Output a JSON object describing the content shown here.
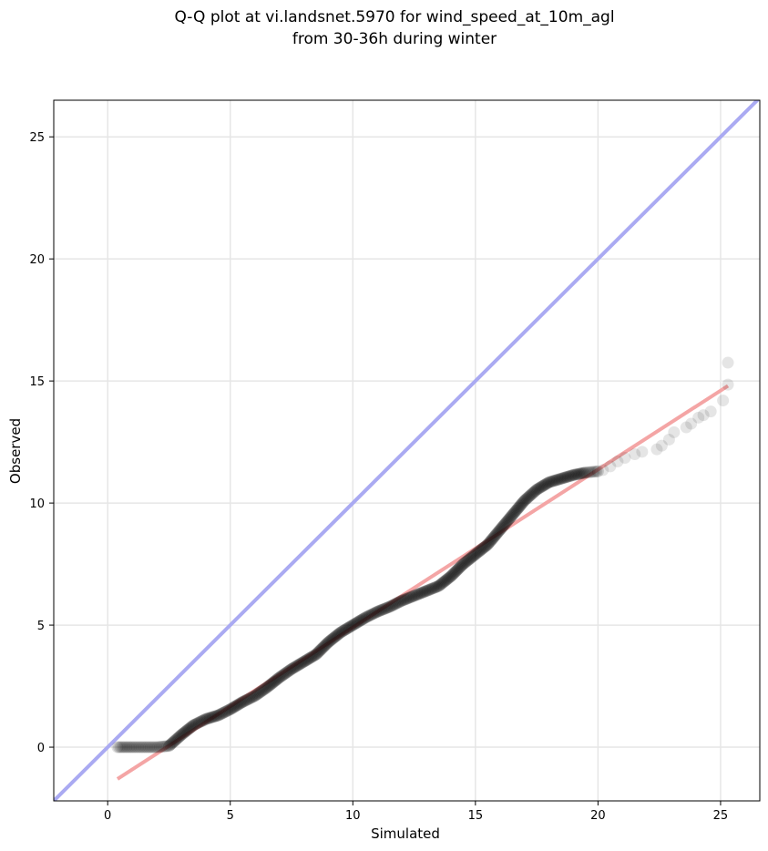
{
  "chart_data": {
    "type": "scatter",
    "title_line1": "Q-Q plot at vi.landsnet.5970 for wind_speed_at_10m_agl",
    "title_line2": "from 30-36h during winter",
    "xlabel": "Simulated",
    "ylabel": "Observed",
    "xlim": [
      -2.2,
      26.6
    ],
    "ylim": [
      -2.2,
      26.5
    ],
    "xticks": [
      0,
      5,
      10,
      15,
      20,
      25
    ],
    "yticks": [
      0,
      5,
      10,
      15,
      20,
      25
    ],
    "xtick_labels": [
      "0",
      "5",
      "10",
      "15",
      "20",
      "25"
    ],
    "ytick_labels": [
      "0",
      "5",
      "10",
      "15",
      "20",
      "25"
    ],
    "grid": true,
    "identity_line": {
      "from": [
        -2.2,
        -2.2
      ],
      "to": [
        26.6,
        26.6
      ],
      "color": "#aaaaf2"
    },
    "fit_line": {
      "from": [
        0.4,
        -1.3
      ],
      "to": [
        25.3,
        14.8
      ],
      "color": "#f4a5a5"
    },
    "point_color": "#000000",
    "anchor_points": [
      [
        0.4,
        0.0
      ],
      [
        1.0,
        0.0
      ],
      [
        1.5,
        0.0
      ],
      [
        2.0,
        0.0
      ],
      [
        2.5,
        0.05
      ],
      [
        3.0,
        0.5
      ],
      [
        3.5,
        0.9
      ],
      [
        4.0,
        1.15
      ],
      [
        4.5,
        1.3
      ],
      [
        5.0,
        1.55
      ],
      [
        5.5,
        1.85
      ],
      [
        6.0,
        2.1
      ],
      [
        6.5,
        2.45
      ],
      [
        7.0,
        2.85
      ],
      [
        7.5,
        3.2
      ],
      [
        8.0,
        3.5
      ],
      [
        8.5,
        3.8
      ],
      [
        9.0,
        4.3
      ],
      [
        9.5,
        4.7
      ],
      [
        10.0,
        5.0
      ],
      [
        10.5,
        5.3
      ],
      [
        11.0,
        5.55
      ],
      [
        11.5,
        5.75
      ],
      [
        12.0,
        6.0
      ],
      [
        12.5,
        6.2
      ],
      [
        13.0,
        6.4
      ],
      [
        13.5,
        6.6
      ],
      [
        14.0,
        7.0
      ],
      [
        14.5,
        7.5
      ],
      [
        15.0,
        7.9
      ],
      [
        15.5,
        8.3
      ],
      [
        16.0,
        8.9
      ],
      [
        16.5,
        9.5
      ],
      [
        17.0,
        10.1
      ],
      [
        17.5,
        10.55
      ],
      [
        18.0,
        10.85
      ],
      [
        18.5,
        11.0
      ],
      [
        19.0,
        11.15
      ],
      [
        19.5,
        11.25
      ],
      [
        20.0,
        11.3
      ]
    ],
    "tail_points": [
      [
        20.2,
        11.35
      ],
      [
        20.5,
        11.5
      ],
      [
        20.8,
        11.7
      ],
      [
        21.1,
        11.85
      ],
      [
        21.5,
        12.0
      ],
      [
        21.8,
        12.1
      ],
      [
        22.4,
        12.2
      ],
      [
        22.6,
        12.35
      ],
      [
        22.9,
        12.6
      ],
      [
        23.1,
        12.9
      ],
      [
        23.6,
        13.1
      ],
      [
        23.8,
        13.25
      ],
      [
        24.1,
        13.5
      ],
      [
        24.3,
        13.6
      ],
      [
        24.6,
        13.75
      ],
      [
        25.1,
        14.2
      ],
      [
        25.3,
        14.85
      ],
      [
        25.3,
        15.75
      ]
    ]
  }
}
